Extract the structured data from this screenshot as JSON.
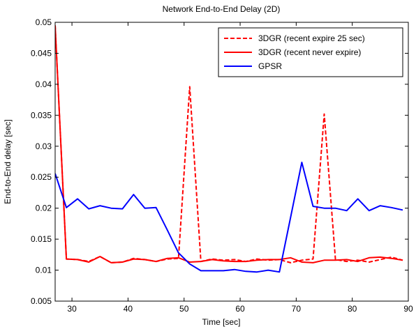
{
  "chart_data": {
    "type": "line",
    "title": "Network End-to-End Delay (2D)",
    "xlabel": "Time [sec]",
    "ylabel": "End-to-End delay [sec]",
    "xlim": [
      27,
      90
    ],
    "ylim": [
      0.005,
      0.05
    ],
    "xticks": [
      30,
      40,
      50,
      60,
      70,
      80,
      90
    ],
    "xtick_labels": [
      "30",
      "40",
      "50",
      "60",
      "70",
      "80",
      "90"
    ],
    "yticks": [
      0.005,
      0.01,
      0.015,
      0.02,
      0.025,
      0.03,
      0.035,
      0.04,
      0.045,
      0.05
    ],
    "ytick_labels": [
      "0.005",
      "0.01",
      "0.015",
      "0.02",
      "0.025",
      "0.03",
      "0.035",
      "0.04",
      "0.045",
      "0.05"
    ],
    "grid": false,
    "legend_position": "top-right",
    "series": [
      {
        "name": "3DGR (recent expire 25 sec)",
        "color": "#ff0000",
        "dash": "dashed",
        "x": [
          27,
          29,
          31,
          33,
          35,
          37,
          39,
          41,
          43,
          45,
          47,
          49,
          51,
          53,
          55,
          57,
          59,
          61,
          63,
          65,
          67,
          69,
          71,
          73,
          75,
          77,
          79,
          81,
          83,
          85,
          87,
          89
        ],
        "y": [
          0.0495,
          0.0118,
          0.0117,
          0.0114,
          0.0122,
          0.0112,
          0.0113,
          0.0119,
          0.0117,
          0.0114,
          0.0118,
          0.0119,
          0.0396,
          0.0114,
          0.0118,
          0.0116,
          0.0117,
          0.0114,
          0.0118,
          0.0116,
          0.0117,
          0.0112,
          0.0116,
          0.0118,
          0.0352,
          0.0117,
          0.0114,
          0.0116,
          0.0113,
          0.0117,
          0.0121,
          0.0116
        ]
      },
      {
        "name": "3DGR (recent never expire)",
        "color": "#ff0000",
        "dash": "solid",
        "x": [
          27,
          29,
          31,
          33,
          35,
          37,
          39,
          41,
          43,
          45,
          47,
          49,
          51,
          53,
          55,
          57,
          59,
          61,
          63,
          65,
          67,
          69,
          71,
          73,
          75,
          77,
          79,
          81,
          83,
          85,
          87,
          89
        ],
        "y": [
          0.0495,
          0.0118,
          0.0117,
          0.0113,
          0.0122,
          0.0112,
          0.0113,
          0.0118,
          0.0117,
          0.0114,
          0.0119,
          0.012,
          0.0113,
          0.0114,
          0.0117,
          0.0115,
          0.0114,
          0.0114,
          0.0116,
          0.0117,
          0.0117,
          0.012,
          0.0113,
          0.0112,
          0.0116,
          0.0116,
          0.0117,
          0.0114,
          0.012,
          0.0121,
          0.0119,
          0.0116
        ]
      },
      {
        "name": "GPSR",
        "color": "#0000ff",
        "dash": "solid",
        "x": [
          27,
          29,
          31,
          33,
          35,
          37,
          39,
          41,
          43,
          45,
          47,
          49,
          51,
          53,
          55,
          57,
          59,
          61,
          63,
          65,
          67,
          69,
          71,
          73,
          75,
          77,
          79,
          81,
          83,
          85,
          87,
          89
        ],
        "y": [
          0.0256,
          0.0201,
          0.0215,
          0.0199,
          0.0204,
          0.02,
          0.0199,
          0.0222,
          0.02,
          0.0201,
          0.0165,
          0.0128,
          0.011,
          0.0099,
          0.0099,
          0.0099,
          0.0101,
          0.0098,
          0.0097,
          0.01,
          0.0097,
          0.0185,
          0.0274,
          0.0203,
          0.02,
          0.02,
          0.0196,
          0.0215,
          0.0196,
          0.0204,
          0.0201,
          0.0197
        ]
      }
    ]
  }
}
